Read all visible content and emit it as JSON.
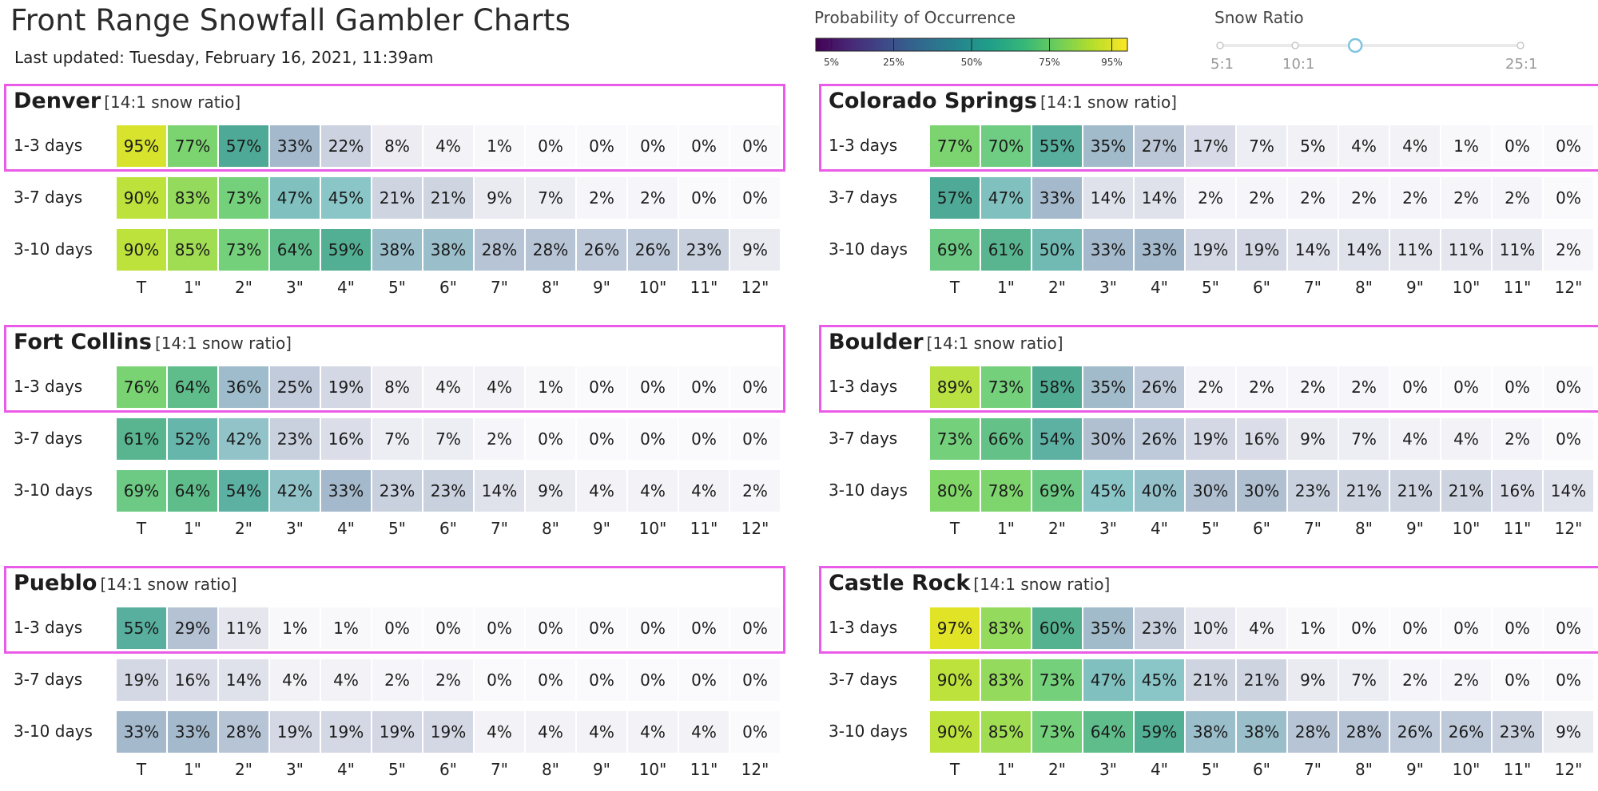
{
  "header": {
    "title": "Front Range Snowfall Gambler Charts",
    "updated": "Last updated: Tuesday, February 16, 2021, 11:39am"
  },
  "legend": {
    "title": "Probability of Occurrence",
    "ticks": [
      "5%",
      "25%",
      "50%",
      "75%",
      "95%"
    ],
    "tick_values": [
      5,
      25,
      50,
      75,
      95
    ],
    "colormap": "viridis"
  },
  "snow_ratio_control": {
    "title": "Snow Ratio",
    "labels": [
      "5:1",
      "10:1",
      "25:1"
    ],
    "label_values": [
      5,
      10,
      25
    ],
    "min": 5,
    "max": 25,
    "stops": [
      5,
      10,
      25
    ],
    "selected": 14
  },
  "chart_data": [
    {
      "type": "heatmap",
      "title": "Denver",
      "subtitle": "[14:1 snow ratio]",
      "x": [
        "T",
        "1\"",
        "2\"",
        "3\"",
        "4\"",
        "5\"",
        "6\"",
        "7\"",
        "8\"",
        "9\"",
        "10\"",
        "11\"",
        "12\""
      ],
      "series": [
        {
          "name": "1-3 days",
          "values": [
            95,
            77,
            57,
            33,
            22,
            8,
            4,
            1,
            0,
            0,
            0,
            0,
            0
          ]
        },
        {
          "name": "3-7 days",
          "values": [
            90,
            83,
            73,
            47,
            45,
            21,
            21,
            9,
            7,
            2,
            2,
            0,
            0
          ]
        },
        {
          "name": "3-10 days",
          "values": [
            90,
            85,
            73,
            64,
            59,
            38,
            38,
            28,
            28,
            26,
            26,
            23,
            9
          ]
        }
      ]
    },
    {
      "type": "heatmap",
      "title": "Colorado Springs",
      "subtitle": "[14:1 snow ratio]",
      "x": [
        "T",
        "1\"",
        "2\"",
        "3\"",
        "4\"",
        "5\"",
        "6\"",
        "7\"",
        "8\"",
        "9\"",
        "10\"",
        "11\"",
        "12\""
      ],
      "series": [
        {
          "name": "1-3 days",
          "values": [
            77,
            70,
            55,
            35,
            27,
            17,
            7,
            5,
            4,
            4,
            1,
            0,
            0
          ]
        },
        {
          "name": "3-7 days",
          "values": [
            57,
            47,
            33,
            14,
            14,
            2,
            2,
            2,
            2,
            2,
            2,
            2,
            0
          ]
        },
        {
          "name": "3-10 days",
          "values": [
            69,
            61,
            50,
            33,
            33,
            19,
            19,
            14,
            14,
            11,
            11,
            11,
            2
          ]
        }
      ]
    },
    {
      "type": "heatmap",
      "title": "Fort Collins",
      "subtitle": "[14:1 snow ratio]",
      "x": [
        "T",
        "1\"",
        "2\"",
        "3\"",
        "4\"",
        "5\"",
        "6\"",
        "7\"",
        "8\"",
        "9\"",
        "10\"",
        "11\"",
        "12\""
      ],
      "series": [
        {
          "name": "1-3 days",
          "values": [
            76,
            64,
            36,
            25,
            19,
            8,
            4,
            4,
            1,
            0,
            0,
            0,
            0
          ]
        },
        {
          "name": "3-7 days",
          "values": [
            61,
            52,
            42,
            23,
            16,
            7,
            7,
            2,
            0,
            0,
            0,
            0,
            0
          ]
        },
        {
          "name": "3-10 days",
          "values": [
            69,
            64,
            54,
            42,
            33,
            23,
            23,
            14,
            9,
            4,
            4,
            4,
            2
          ]
        }
      ]
    },
    {
      "type": "heatmap",
      "title": "Boulder",
      "subtitle": "[14:1 snow ratio]",
      "x": [
        "T",
        "1\"",
        "2\"",
        "3\"",
        "4\"",
        "5\"",
        "6\"",
        "7\"",
        "8\"",
        "9\"",
        "10\"",
        "11\"",
        "12\""
      ],
      "series": [
        {
          "name": "1-3 days",
          "values": [
            89,
            73,
            58,
            35,
            26,
            2,
            2,
            2,
            2,
            0,
            0,
            0,
            0
          ]
        },
        {
          "name": "3-7 days",
          "values": [
            73,
            66,
            54,
            30,
            26,
            19,
            16,
            9,
            7,
            4,
            4,
            2,
            0
          ]
        },
        {
          "name": "3-10 days",
          "values": [
            80,
            78,
            69,
            45,
            40,
            30,
            30,
            23,
            21,
            21,
            21,
            16,
            14
          ]
        }
      ]
    },
    {
      "type": "heatmap",
      "title": "Pueblo",
      "subtitle": "[14:1 snow ratio]",
      "x": [
        "T",
        "1\"",
        "2\"",
        "3\"",
        "4\"",
        "5\"",
        "6\"",
        "7\"",
        "8\"",
        "9\"",
        "10\"",
        "11\"",
        "12\""
      ],
      "series": [
        {
          "name": "1-3 days",
          "values": [
            55,
            29,
            11,
            1,
            1,
            0,
            0,
            0,
            0,
            0,
            0,
            0,
            0
          ]
        },
        {
          "name": "3-7 days",
          "values": [
            19,
            16,
            14,
            4,
            4,
            2,
            2,
            0,
            0,
            0,
            0,
            0,
            0
          ]
        },
        {
          "name": "3-10 days",
          "values": [
            33,
            33,
            28,
            19,
            19,
            19,
            19,
            4,
            4,
            4,
            4,
            4,
            0
          ]
        }
      ]
    },
    {
      "type": "heatmap",
      "title": "Castle Rock",
      "subtitle": "[14:1 snow ratio]",
      "x": [
        "T",
        "1\"",
        "2\"",
        "3\"",
        "4\"",
        "5\"",
        "6\"",
        "7\"",
        "8\"",
        "9\"",
        "10\"",
        "11\"",
        "12\""
      ],
      "series": [
        {
          "name": "1-3 days",
          "values": [
            97,
            83,
            60,
            35,
            23,
            10,
            4,
            1,
            0,
            0,
            0,
            0,
            0
          ]
        },
        {
          "name": "3-7 days",
          "values": [
            90,
            83,
            73,
            47,
            45,
            21,
            21,
            9,
            7,
            2,
            2,
            0,
            0
          ]
        },
        {
          "name": "3-10 days",
          "values": [
            90,
            85,
            73,
            64,
            59,
            38,
            38,
            28,
            28,
            26,
            26,
            23,
            9
          ]
        }
      ]
    }
  ]
}
